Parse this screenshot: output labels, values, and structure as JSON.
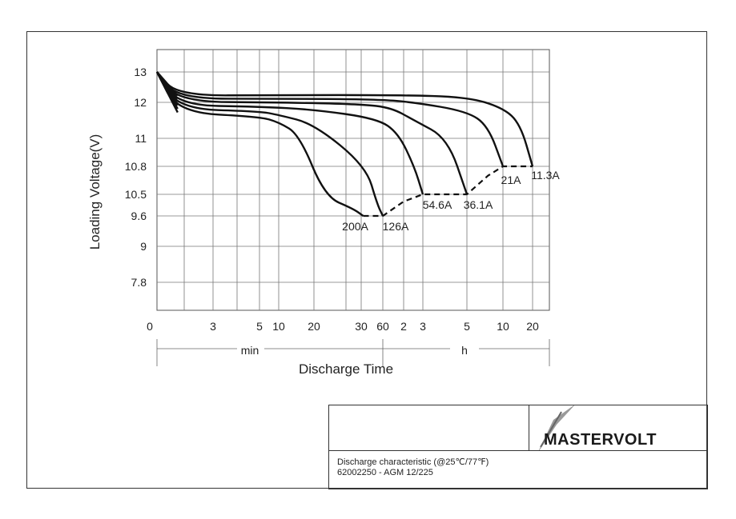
{
  "chart_data": {
    "type": "line",
    "title": "",
    "xlabel": "Discharge Time",
    "ylabel": "Loading  Voltage(V)",
    "x_scale": "log",
    "x_unit_min_label": "min",
    "x_unit_h_label": "h",
    "x_ticks": [
      {
        "label": "0",
        "minutes": 1
      },
      {
        "label": "3",
        "minutes": 3
      },
      {
        "label": "5",
        "minutes": 5
      },
      {
        "label": "10",
        "minutes": 10
      },
      {
        "label": "20",
        "minutes": 20
      },
      {
        "label": "30",
        "minutes": 30
      },
      {
        "label": "60",
        "minutes": 60
      },
      {
        "label": "2",
        "minutes": 120
      },
      {
        "label": "3",
        "minutes": 180
      },
      {
        "label": "5",
        "minutes": 300
      },
      {
        "label": "10",
        "minutes": 600
      },
      {
        "label": "20",
        "minutes": 1200
      }
    ],
    "y_ticks": [
      {
        "label": "13",
        "value": 13
      },
      {
        "label": "12",
        "value": 12
      },
      {
        "label": "11",
        "value": 11
      },
      {
        "label": "10.8",
        "value": 10.8
      },
      {
        "label": "10.5",
        "value": 10.5
      },
      {
        "label": "9.6",
        "value": 9.6
      },
      {
        "label": "9",
        "value": 9
      },
      {
        "label": "7.8",
        "value": 7.8
      }
    ],
    "grid": true,
    "series": [
      {
        "name": "200A",
        "cutoff_voltage": 9.6,
        "points": [
          [
            1,
            13
          ],
          [
            1.5,
            11.72
          ],
          [
            5,
            11.6
          ],
          [
            10,
            11.45
          ],
          [
            15,
            11.1
          ],
          [
            22,
            10.4
          ],
          [
            28,
            9.9
          ],
          [
            32,
            9.6
          ]
        ]
      },
      {
        "name": "126A",
        "cutoff_voltage": 9.6,
        "points": [
          [
            1,
            13
          ],
          [
            1.5,
            11.82
          ],
          [
            5,
            11.75
          ],
          [
            10,
            11.65
          ],
          [
            20,
            11.4
          ],
          [
            35,
            10.8
          ],
          [
            50,
            10.1
          ],
          [
            60,
            9.6
          ]
        ]
      },
      {
        "name": "54.6A",
        "cutoff_voltage": 10.5,
        "points": [
          [
            1,
            13
          ],
          [
            1.5,
            11.92
          ],
          [
            5,
            11.88
          ],
          [
            20,
            11.8
          ],
          [
            50,
            11.55
          ],
          [
            100,
            11.15
          ],
          [
            150,
            10.8
          ],
          [
            180,
            10.5
          ]
        ]
      },
      {
        "name": "36.1A",
        "cutoff_voltage": 10.5,
        "points": [
          [
            1,
            13
          ],
          [
            1.5,
            12.02
          ],
          [
            10,
            12.0
          ],
          [
            30,
            11.95
          ],
          [
            80,
            11.85
          ],
          [
            150,
            11.5
          ],
          [
            240,
            11.0
          ],
          [
            300,
            10.5
          ]
        ]
      },
      {
        "name": "21A",
        "cutoff_voltage": 10.8,
        "points": [
          [
            1,
            13
          ],
          [
            1.5,
            12.12
          ],
          [
            10,
            12.12
          ],
          [
            50,
            12.1
          ],
          [
            150,
            12.0
          ],
          [
            300,
            11.75
          ],
          [
            450,
            11.35
          ],
          [
            600,
            10.8
          ]
        ]
      },
      {
        "name": "11.3A",
        "cutoff_voltage": 10.8,
        "points": [
          [
            1,
            13
          ],
          [
            1.5,
            12.22
          ],
          [
            10,
            12.24
          ],
          [
            100,
            12.24
          ],
          [
            300,
            12.18
          ],
          [
            600,
            11.85
          ],
          [
            900,
            11.4
          ],
          [
            1200,
            10.8
          ]
        ]
      }
    ],
    "cutoff_line": {
      "style": "dashed",
      "points": [
        [
          32,
          9.6
        ],
        [
          60,
          9.6
        ],
        [
          120,
          10.2
        ],
        [
          180,
          10.5
        ],
        [
          300,
          10.5
        ],
        [
          450,
          10.7
        ],
        [
          600,
          10.8
        ],
        [
          1200,
          10.8
        ]
      ]
    }
  },
  "title_block": {
    "logo": "MASTERVOLT",
    "line1": "Discharge characteristic (@25℃/77℉)",
    "line2": "62002250 - AGM 12/225"
  }
}
